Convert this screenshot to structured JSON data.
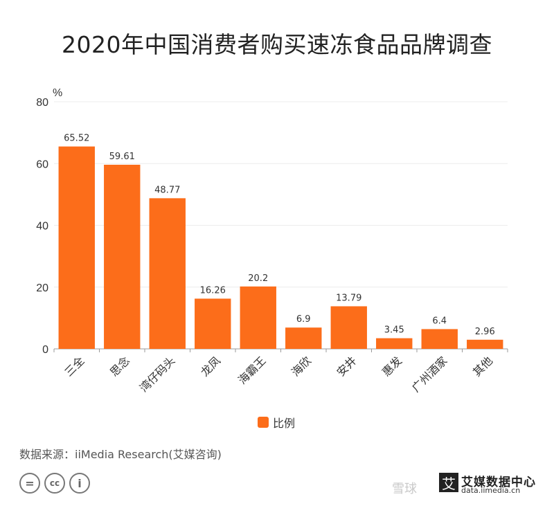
{
  "title": "2020年中国消费者购买速冻食品品牌调查",
  "chart_data": {
    "type": "bar",
    "title": "2020年中国消费者购买速冻食品品牌调查",
    "ylabel": "%",
    "xlabel": "",
    "ylim": [
      0,
      80
    ],
    "yticks": [
      0,
      20,
      40,
      60,
      80
    ],
    "grid": true,
    "legend_position": "bottom",
    "categories": [
      "三全",
      "思念",
      "湾仔码头",
      "龙凤",
      "海霸王",
      "海欣",
      "安井",
      "惠发",
      "广州酒家",
      "其他"
    ],
    "series": [
      {
        "name": "比例",
        "color": "#fc6d1a",
        "values": [
          65.52,
          59.61,
          48.77,
          16.26,
          20.2,
          6.9,
          13.79,
          3.45,
          6.4,
          2.96
        ],
        "labels": [
          "65.52",
          "59.61",
          "48.77",
          "16.26",
          "20.2",
          "6.9",
          "13.79",
          "3.45",
          "6.4",
          "2.96"
        ]
      }
    ]
  },
  "legend": {
    "label": "比例",
    "color": "#fc6d1a"
  },
  "source": "数据来源：iiMedia Research(艾媒咨询)",
  "license_icons": [
    "equal-icon",
    "cc-icon",
    "person-icon"
  ],
  "license_glyphs": {
    "equal": "=",
    "cc": "cc",
    "person": "i"
  },
  "brand": {
    "mark": "艾",
    "name_cn": "艾媒数据中心",
    "name_en": "data.iimedia.cn"
  },
  "watermark": "雪球"
}
